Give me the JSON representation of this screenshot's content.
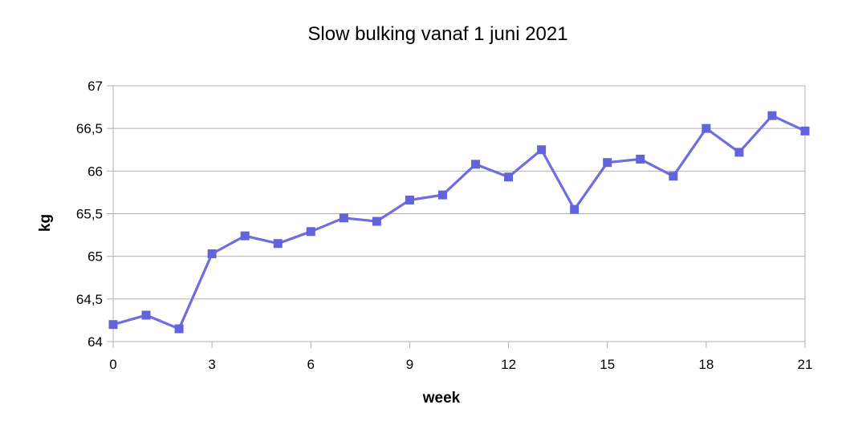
{
  "title": "Slow bulking vanaf 1 juni 2021",
  "chart_data": {
    "type": "line",
    "title": "Slow bulking vanaf 1 juni 2021",
    "xlabel": "week",
    "ylabel": "kg",
    "x": [
      0,
      1,
      2,
      3,
      4,
      5,
      6,
      7,
      8,
      9,
      10,
      11,
      12,
      13,
      14,
      15,
      16,
      17,
      18,
      19,
      20,
      21
    ],
    "values": [
      64.2,
      64.31,
      64.15,
      65.03,
      65.24,
      65.15,
      65.29,
      65.45,
      65.41,
      65.66,
      65.72,
      66.08,
      65.93,
      66.25,
      65.55,
      66.1,
      66.14,
      65.94,
      66.5,
      66.22,
      66.65,
      66.47
    ],
    "xlim": [
      0,
      21
    ],
    "ylim": [
      64,
      67
    ],
    "x_ticks": [
      0,
      3,
      6,
      9,
      12,
      15,
      18,
      21
    ],
    "y_ticks": [
      64,
      64.5,
      65,
      65.5,
      66,
      66.5,
      67
    ],
    "y_tick_labels": [
      "64",
      "64,5",
      "65",
      "65,5",
      "66",
      "66,5",
      "67"
    ],
    "x_tick_labels": [
      "0",
      "3",
      "6",
      "9",
      "12",
      "15",
      "18",
      "21"
    ],
    "grid": "horizontal",
    "legend": "none",
    "marker": "square",
    "colors": {
      "line": "#6E6EDF",
      "marker": "#6363DC",
      "grid": "#b0b0b0",
      "text": "#000000",
      "background": "#ffffff"
    }
  }
}
